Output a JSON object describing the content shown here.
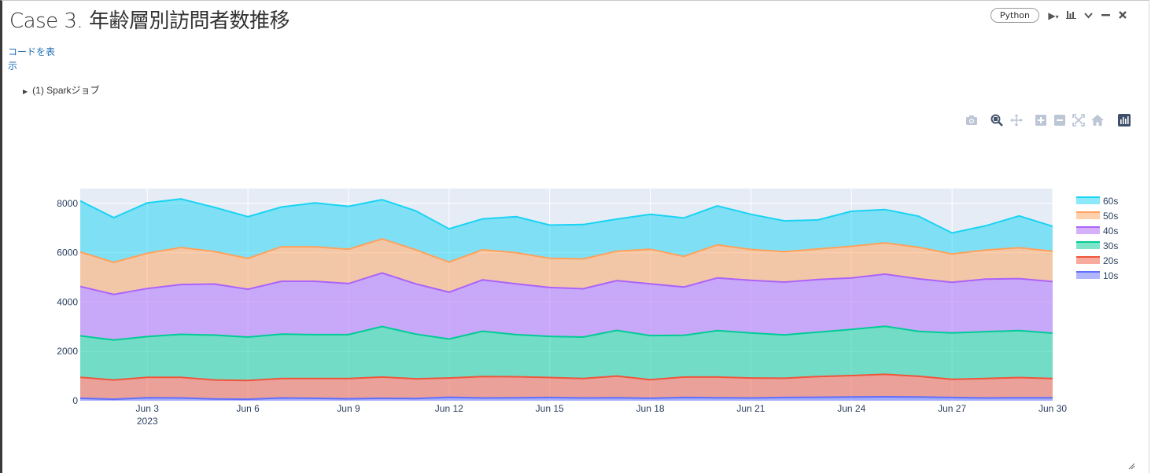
{
  "cell": {
    "title": "Case 3. 年齢層別訪問者数推移",
    "language": "Python",
    "show_code_label": "コードを表示",
    "spark_jobs_label": "(1) Sparkジョブ"
  },
  "toolbar_icons": [
    "run-icon",
    "chart-icon",
    "chevron-down-icon",
    "minimize-icon",
    "close-icon"
  ],
  "modebar_icons": [
    "camera-icon",
    "zoom-icon",
    "pan-icon",
    "zoom-in-icon",
    "zoom-out-icon",
    "autoscale-icon",
    "reset-axes-icon",
    "plotly-logo-icon"
  ],
  "colors": {
    "plot_bg": "#e5ecf6",
    "grid": "#ffffff",
    "tick_text": "#2a3f5f"
  },
  "chart_data": {
    "type": "area",
    "stacked": true,
    "x": [
      "Jun 1",
      "Jun 2",
      "Jun 3",
      "Jun 4",
      "Jun 5",
      "Jun 6",
      "Jun 7",
      "Jun 8",
      "Jun 9",
      "Jun 10",
      "Jun 11",
      "Jun 12",
      "Jun 13",
      "Jun 14",
      "Jun 15",
      "Jun 16",
      "Jun 17",
      "Jun 18",
      "Jun 19",
      "Jun 20",
      "Jun 21",
      "Jun 22",
      "Jun 23",
      "Jun 24",
      "Jun 25",
      "Jun 26",
      "Jun 27",
      "Jun 28",
      "Jun 29",
      "Jun 30"
    ],
    "x_tick_labels": [
      "Jun 3",
      "Jun 6",
      "Jun 9",
      "Jun 12",
      "Jun 15",
      "Jun 18",
      "Jun 21",
      "Jun 24",
      "Jun 27",
      "Jun 30"
    ],
    "x_tick_indices": [
      2,
      5,
      8,
      11,
      14,
      17,
      20,
      23,
      26,
      29
    ],
    "x_year_label": "2023",
    "y_ticks": [
      0,
      2000,
      4000,
      6000,
      8000
    ],
    "ylim": [
      0,
      8600
    ],
    "legend_position": "right",
    "series": [
      {
        "name": "10s",
        "line": "#636efa",
        "fill": "rgba(99,110,250,0.5)",
        "values": [
          100,
          60,
          120,
          110,
          70,
          60,
          110,
          100,
          80,
          100,
          90,
          140,
          110,
          120,
          130,
          110,
          120,
          100,
          130,
          120,
          110,
          130,
          140,
          150,
          160,
          150,
          130,
          110,
          120,
          120
        ]
      },
      {
        "name": "20s",
        "line": "#ef553b",
        "fill": "rgba(239,85,59,0.5)",
        "values": [
          850,
          780,
          830,
          840,
          770,
          760,
          790,
          800,
          820,
          860,
          800,
          780,
          870,
          850,
          810,
          790,
          880,
          750,
          830,
          840,
          810,
          780,
          840,
          870,
          910,
          840,
          740,
          790,
          820,
          780
        ]
      },
      {
        "name": "30s",
        "line": "#00cc96",
        "fill": "rgba(0,204,150,0.5)",
        "values": [
          1680,
          1620,
          1650,
          1740,
          1820,
          1760,
          1800,
          1780,
          1780,
          2050,
          1810,
          1580,
          1840,
          1710,
          1670,
          1680,
          1850,
          1790,
          1690,
          1880,
          1830,
          1760,
          1800,
          1870,
          1950,
          1820,
          1880,
          1900,
          1900,
          1840
        ]
      },
      {
        "name": "40s",
        "line": "#ab63fa",
        "fill": "rgba(171,99,250,0.5)",
        "values": [
          2000,
          1850,
          1950,
          2020,
          2070,
          1940,
          2140,
          2160,
          2070,
          2170,
          2040,
          1900,
          2080,
          2060,
          1980,
          1960,
          2020,
          2100,
          1960,
          2140,
          2130,
          2140,
          2130,
          2090,
          2110,
          2130,
          2050,
          2130,
          2110,
          2090
        ]
      },
      {
        "name": "50s",
        "line": "#ffa15a",
        "fill": "rgba(255,161,90,0.5)",
        "values": [
          1400,
          1300,
          1430,
          1500,
          1320,
          1250,
          1400,
          1400,
          1390,
          1380,
          1380,
          1220,
          1220,
          1260,
          1180,
          1210,
          1190,
          1400,
          1240,
          1340,
          1250,
          1230,
          1240,
          1280,
          1270,
          1280,
          1150,
          1180,
          1250,
          1230
        ]
      },
      {
        "name": "60s",
        "line": "#19d3f3",
        "fill": "rgba(25,211,243,0.5)",
        "values": [
          2070,
          1810,
          2040,
          1970,
          1790,
          1690,
          1610,
          1780,
          1740,
          1590,
          1580,
          1350,
          1250,
          1460,
          1350,
          1390,
          1300,
          1420,
          1560,
          1580,
          1430,
          1250,
          1180,
          1420,
          1350,
          1260,
          850,
          980,
          1290,
          1010
        ]
      }
    ]
  }
}
